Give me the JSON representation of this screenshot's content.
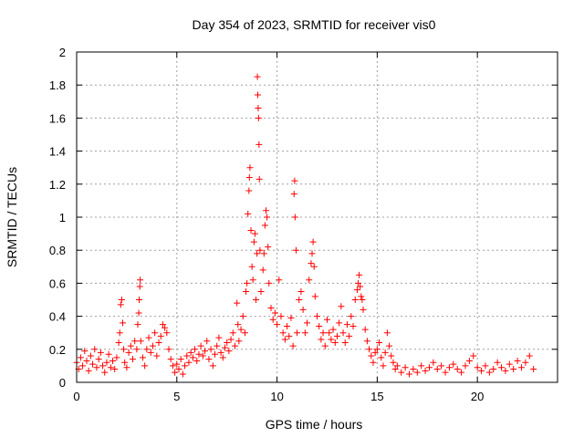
{
  "chart_data": {
    "type": "scatter",
    "title": "Day 354 of 2023, SRMTID for receiver vis0",
    "xlabel": "GPS time / hours",
    "ylabel": "SRMTID / TECUs",
    "xlim": [
      0,
      24
    ],
    "ylim": [
      0,
      2
    ],
    "xticks": [
      0,
      5,
      10,
      15,
      20
    ],
    "yticks": [
      0,
      0.2,
      0.4,
      0.6,
      0.8,
      1,
      1.2,
      1.4,
      1.6,
      1.8,
      2
    ],
    "xtick_labels": [
      "0",
      "5",
      "10",
      "15",
      "20"
    ],
    "ytick_labels": [
      "0",
      "0.2",
      "0.4",
      "0.6",
      "0.8",
      "1",
      "1.2",
      "1.4",
      "1.6",
      "1.8",
      "2"
    ],
    "grid": true,
    "marker": "plus",
    "color": "#ff0000",
    "series": [
      {
        "name": "SRMTID",
        "points": [
          [
            0.0,
            0.12
          ],
          [
            0.1,
            0.08
          ],
          [
            0.2,
            0.15
          ],
          [
            0.3,
            0.1
          ],
          [
            0.4,
            0.19
          ],
          [
            0.5,
            0.13
          ],
          [
            0.6,
            0.07
          ],
          [
            0.7,
            0.16
          ],
          [
            0.8,
            0.11
          ],
          [
            0.9,
            0.2
          ],
          [
            1.0,
            0.09
          ],
          [
            1.1,
            0.14
          ],
          [
            1.2,
            0.18
          ],
          [
            1.3,
            0.1
          ],
          [
            1.4,
            0.06
          ],
          [
            1.5,
            0.12
          ],
          [
            1.6,
            0.17
          ],
          [
            1.7,
            0.09
          ],
          [
            1.8,
            0.13
          ],
          [
            1.9,
            0.08
          ],
          [
            2.0,
            0.15
          ],
          [
            2.1,
            0.24
          ],
          [
            2.15,
            0.3
          ],
          [
            2.2,
            0.47
          ],
          [
            2.25,
            0.5
          ],
          [
            2.3,
            0.36
          ],
          [
            2.35,
            0.2
          ],
          [
            2.4,
            0.12
          ],
          [
            2.5,
            0.09
          ],
          [
            2.6,
            0.18
          ],
          [
            2.7,
            0.22
          ],
          [
            2.8,
            0.14
          ],
          [
            2.9,
            0.25
          ],
          [
            3.0,
            0.2
          ],
          [
            3.05,
            0.35
          ],
          [
            3.1,
            0.42
          ],
          [
            3.12,
            0.5
          ],
          [
            3.15,
            0.58
          ],
          [
            3.17,
            0.62
          ],
          [
            3.2,
            0.25
          ],
          [
            3.3,
            0.15
          ],
          [
            3.4,
            0.1
          ],
          [
            3.5,
            0.2
          ],
          [
            3.6,
            0.27
          ],
          [
            3.7,
            0.18
          ],
          [
            3.8,
            0.22
          ],
          [
            3.9,
            0.3
          ],
          [
            4.0,
            0.16
          ],
          [
            4.1,
            0.24
          ],
          [
            4.2,
            0.28
          ],
          [
            4.3,
            0.35
          ],
          [
            4.4,
            0.33
          ],
          [
            4.5,
            0.3
          ],
          [
            4.6,
            0.2
          ],
          [
            4.7,
            0.14
          ],
          [
            4.8,
            0.1
          ],
          [
            4.9,
            0.06
          ],
          [
            5.0,
            0.11
          ],
          [
            5.1,
            0.08
          ],
          [
            5.2,
            0.14
          ],
          [
            5.3,
            0.05
          ],
          [
            5.4,
            0.1
          ],
          [
            5.5,
            0.16
          ],
          [
            5.6,
            0.12
          ],
          [
            5.7,
            0.18
          ],
          [
            5.8,
            0.15
          ],
          [
            5.9,
            0.2
          ],
          [
            6.0,
            0.13
          ],
          [
            6.1,
            0.17
          ],
          [
            6.2,
            0.22
          ],
          [
            6.3,
            0.16
          ],
          [
            6.4,
            0.19
          ],
          [
            6.5,
            0.25
          ],
          [
            6.6,
            0.14
          ],
          [
            6.7,
            0.2
          ],
          [
            6.8,
            0.1
          ],
          [
            6.9,
            0.17
          ],
          [
            7.0,
            0.22
          ],
          [
            7.1,
            0.27
          ],
          [
            7.2,
            0.18
          ],
          [
            7.3,
            0.15
          ],
          [
            7.4,
            0.21
          ],
          [
            7.5,
            0.24
          ],
          [
            7.6,
            0.19
          ],
          [
            7.7,
            0.26
          ],
          [
            7.8,
            0.3
          ],
          [
            7.9,
            0.22
          ],
          [
            8.0,
            0.48
          ],
          [
            8.05,
            0.35
          ],
          [
            8.1,
            0.25
          ],
          [
            8.2,
            0.32
          ],
          [
            8.3,
            0.4
          ],
          [
            8.4,
            0.3
          ],
          [
            8.45,
            0.55
          ],
          [
            8.5,
            0.6
          ],
          [
            8.55,
            1.02
          ],
          [
            8.6,
            1.16
          ],
          [
            8.62,
            1.24
          ],
          [
            8.65,
            1.3
          ],
          [
            8.7,
            0.92
          ],
          [
            8.75,
            0.7
          ],
          [
            8.8,
            0.62
          ],
          [
            8.85,
            0.85
          ],
          [
            8.9,
            0.9
          ],
          [
            8.95,
            0.5
          ],
          [
            9.0,
            0.78
          ],
          [
            9.02,
            1.85
          ],
          [
            9.04,
            1.74
          ],
          [
            9.06,
            1.66
          ],
          [
            9.08,
            1.6
          ],
          [
            9.1,
            1.44
          ],
          [
            9.12,
            1.23
          ],
          [
            9.15,
            0.8
          ],
          [
            9.2,
            0.55
          ],
          [
            9.3,
            0.68
          ],
          [
            9.35,
            0.78
          ],
          [
            9.4,
            0.95
          ],
          [
            9.45,
            1.04
          ],
          [
            9.5,
            1.0
          ],
          [
            9.55,
            0.82
          ],
          [
            9.6,
            0.6
          ],
          [
            9.7,
            0.45
          ],
          [
            9.8,
            0.38
          ],
          [
            9.9,
            0.42
          ],
          [
            10.0,
            0.35
          ],
          [
            10.1,
            0.62
          ],
          [
            10.2,
            0.4
          ],
          [
            10.3,
            0.3
          ],
          [
            10.4,
            0.26
          ],
          [
            10.5,
            0.34
          ],
          [
            10.6,
            0.28
          ],
          [
            10.7,
            0.39
          ],
          [
            10.8,
            0.22
          ],
          [
            10.85,
            1.14
          ],
          [
            10.88,
            1.22
          ],
          [
            10.9,
            1.0
          ],
          [
            10.95,
            0.8
          ],
          [
            11.0,
            0.3
          ],
          [
            11.1,
            0.5
          ],
          [
            11.2,
            0.55
          ],
          [
            11.3,
            0.44
          ],
          [
            11.4,
            0.3
          ],
          [
            11.5,
            0.36
          ],
          [
            11.6,
            0.62
          ],
          [
            11.7,
            0.72
          ],
          [
            11.75,
            0.78
          ],
          [
            11.8,
            0.85
          ],
          [
            11.85,
            0.7
          ],
          [
            11.9,
            0.52
          ],
          [
            12.0,
            0.4
          ],
          [
            12.1,
            0.34
          ],
          [
            12.2,
            0.26
          ],
          [
            12.3,
            0.3
          ],
          [
            12.4,
            0.22
          ],
          [
            12.5,
            0.38
          ],
          [
            12.6,
            0.3
          ],
          [
            12.7,
            0.26
          ],
          [
            12.8,
            0.32
          ],
          [
            12.9,
            0.24
          ],
          [
            13.0,
            0.28
          ],
          [
            13.1,
            0.36
          ],
          [
            13.2,
            0.46
          ],
          [
            13.3,
            0.3
          ],
          [
            13.4,
            0.24
          ],
          [
            13.5,
            0.35
          ],
          [
            13.6,
            0.28
          ],
          [
            13.7,
            0.4
          ],
          [
            13.8,
            0.34
          ],
          [
            13.9,
            0.5
          ],
          [
            14.0,
            0.56
          ],
          [
            14.05,
            0.6
          ],
          [
            14.1,
            0.65
          ],
          [
            14.15,
            0.58
          ],
          [
            14.2,
            0.52
          ],
          [
            14.25,
            0.5
          ],
          [
            14.3,
            0.44
          ],
          [
            14.4,
            0.32
          ],
          [
            14.5,
            0.25
          ],
          [
            14.6,
            0.2
          ],
          [
            14.7,
            0.16
          ],
          [
            14.8,
            0.12
          ],
          [
            14.9,
            0.18
          ],
          [
            15.0,
            0.2
          ],
          [
            15.1,
            0.24
          ],
          [
            15.2,
            0.15
          ],
          [
            15.3,
            0.1
          ],
          [
            15.4,
            0.18
          ],
          [
            15.5,
            0.3
          ],
          [
            15.6,
            0.22
          ],
          [
            15.7,
            0.16
          ],
          [
            15.8,
            0.12
          ],
          [
            15.9,
            0.08
          ],
          [
            16.0,
            0.1
          ],
          [
            16.2,
            0.06
          ],
          [
            16.4,
            0.09
          ],
          [
            16.6,
            0.05
          ],
          [
            16.8,
            0.08
          ],
          [
            17.0,
            0.06
          ],
          [
            17.2,
            0.1
          ],
          [
            17.4,
            0.07
          ],
          [
            17.6,
            0.09
          ],
          [
            17.8,
            0.12
          ],
          [
            18.0,
            0.08
          ],
          [
            18.2,
            0.1
          ],
          [
            18.4,
            0.06
          ],
          [
            18.6,
            0.09
          ],
          [
            18.8,
            0.11
          ],
          [
            19.0,
            0.08
          ],
          [
            19.2,
            0.06
          ],
          [
            19.4,
            0.1
          ],
          [
            19.6,
            0.13
          ],
          [
            19.8,
            0.16
          ],
          [
            20.0,
            0.09
          ],
          [
            20.2,
            0.07
          ],
          [
            20.4,
            0.1
          ],
          [
            20.6,
            0.06
          ],
          [
            20.8,
            0.08
          ],
          [
            21.0,
            0.12
          ],
          [
            21.2,
            0.09
          ],
          [
            21.4,
            0.07
          ],
          [
            21.6,
            0.11
          ],
          [
            21.8,
            0.08
          ],
          [
            22.0,
            0.13
          ],
          [
            22.2,
            0.09
          ],
          [
            22.4,
            0.12
          ],
          [
            22.6,
            0.16
          ],
          [
            22.8,
            0.08
          ]
        ]
      }
    ]
  }
}
